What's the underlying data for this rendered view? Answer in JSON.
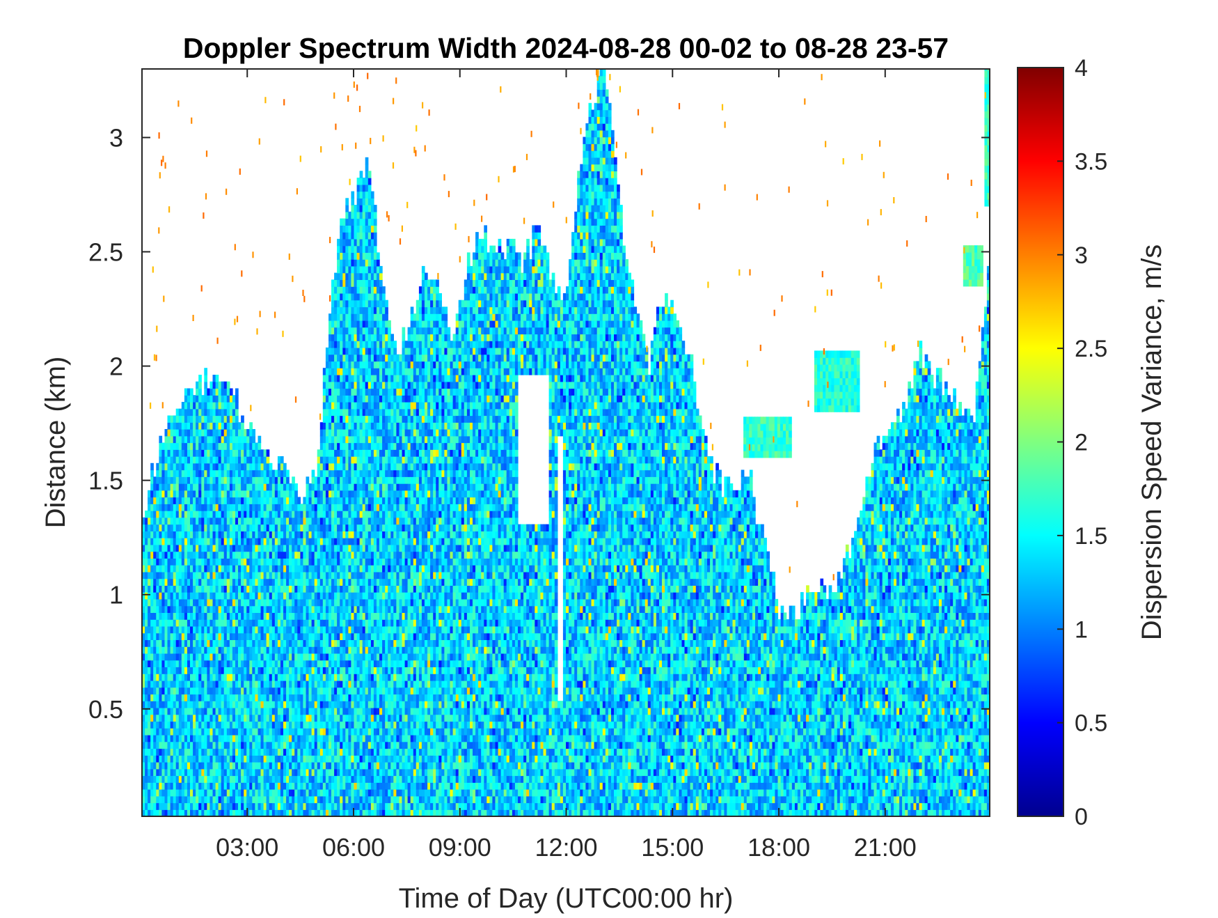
{
  "chart_data": {
    "type": "heatmap",
    "title": "Doppler Spectrum Width 2024-08-28 00-02 to 08-28 23-57",
    "xlabel": "Time of Day (UTC00:00 hr)",
    "ylabel": "Distance (km)",
    "colorbar_label": "Dispersion Speed Variance, m/s",
    "colormap": "jet",
    "xlim_hours": [
      0.03,
      23.95
    ],
    "ylim_km": [
      0.03,
      3.3
    ],
    "clim": [
      0,
      4
    ],
    "x_ticks": [
      {
        "value": 3,
        "label": "03:00"
      },
      {
        "value": 6,
        "label": "06:00"
      },
      {
        "value": 9,
        "label": "09:00"
      },
      {
        "value": 12,
        "label": "12:00"
      },
      {
        "value": 15,
        "label": "15:00"
      },
      {
        "value": 18,
        "label": "18:00"
      },
      {
        "value": 21,
        "label": "21:00"
      }
    ],
    "y_ticks": [
      {
        "value": 0.5,
        "label": "0.5"
      },
      {
        "value": 1,
        "label": "1"
      },
      {
        "value": 1.5,
        "label": "1.5"
      },
      {
        "value": 2,
        "label": "2"
      },
      {
        "value": 2.5,
        "label": "2.5"
      },
      {
        "value": 3,
        "label": "3"
      }
    ],
    "colorbar_ticks": [
      {
        "value": 0,
        "label": "0"
      },
      {
        "value": 0.5,
        "label": "0.5"
      },
      {
        "value": 1,
        "label": "1"
      },
      {
        "value": 1.5,
        "label": "1.5"
      },
      {
        "value": 2,
        "label": "2"
      },
      {
        "value": 2.5,
        "label": "2.5"
      },
      {
        "value": 3,
        "label": "3"
      },
      {
        "value": 3.5,
        "label": "3.5"
      },
      {
        "value": 4,
        "label": "4"
      }
    ],
    "typical_value": 1.35,
    "data_top_profile": [
      [
        0.03,
        1.3
      ],
      [
        0.5,
        1.65
      ],
      [
        1.0,
        1.85
      ],
      [
        1.5,
        1.9
      ],
      [
        2.0,
        1.95
      ],
      [
        2.5,
        1.9
      ],
      [
        3.0,
        1.75
      ],
      [
        3.5,
        1.62
      ],
      [
        4.0,
        1.55
      ],
      [
        4.5,
        1.45
      ],
      [
        5.0,
        1.6
      ],
      [
        5.3,
        2.2
      ],
      [
        5.6,
        2.6
      ],
      [
        6.0,
        2.75
      ],
      [
        6.4,
        2.9
      ],
      [
        6.8,
        2.4
      ],
      [
        7.2,
        2.05
      ],
      [
        7.6,
        2.2
      ],
      [
        8.0,
        2.4
      ],
      [
        8.4,
        2.3
      ],
      [
        8.8,
        2.15
      ],
      [
        9.2,
        2.45
      ],
      [
        9.6,
        2.6
      ],
      [
        10.0,
        2.5
      ],
      [
        10.4,
        2.55
      ],
      [
        10.8,
        2.45
      ],
      [
        11.2,
        2.6
      ],
      [
        11.6,
        2.4
      ],
      [
        12.0,
        2.3
      ],
      [
        12.4,
        2.9
      ],
      [
        12.8,
        3.2
      ],
      [
        13.1,
        3.3
      ],
      [
        13.5,
        2.7
      ],
      [
        13.9,
        2.3
      ],
      [
        14.3,
        2.0
      ],
      [
        14.7,
        2.3
      ],
      [
        15.1,
        2.2
      ],
      [
        15.5,
        2.05
      ],
      [
        15.9,
        1.65
      ],
      [
        16.3,
        1.5
      ],
      [
        16.7,
        1.45
      ],
      [
        17.1,
        1.55
      ],
      [
        17.5,
        1.35
      ],
      [
        18.0,
        0.95
      ],
      [
        18.5,
        0.92
      ],
      [
        19.0,
        1.05
      ],
      [
        19.5,
        1.0
      ],
      [
        20.0,
        1.2
      ],
      [
        20.5,
        1.5
      ],
      [
        21.0,
        1.75
      ],
      [
        21.5,
        1.8
      ],
      [
        22.0,
        2.05
      ],
      [
        22.5,
        1.95
      ],
      [
        23.0,
        1.85
      ],
      [
        23.5,
        1.75
      ],
      [
        23.95,
        2.5
      ]
    ],
    "clear_gaps": [
      {
        "x": [
          11.75,
          11.9
        ],
        "y": [
          0.55,
          1.7
        ]
      },
      {
        "x": [
          10.6,
          11.5
        ],
        "y": [
          1.3,
          1.95
        ]
      },
      {
        "x": [
          17.3,
          19.8
        ],
        "y": [
          1.3,
          1.85
        ]
      }
    ],
    "isolated_patches": [
      {
        "x": [
          17.0,
          18.3
        ],
        "y": [
          1.6,
          1.75
        ],
        "value": 1.7
      },
      {
        "x": [
          19.0,
          20.2
        ],
        "y": [
          1.8,
          2.05
        ],
        "value": 1.65
      },
      {
        "x": [
          23.2,
          23.7
        ],
        "y": [
          2.35,
          2.5
        ],
        "value": 1.8
      },
      {
        "x": [
          23.8,
          23.95
        ],
        "y": [
          2.7,
          3.3
        ],
        "value": 1.7
      }
    ],
    "scattered_noise_value": 2.9
  }
}
